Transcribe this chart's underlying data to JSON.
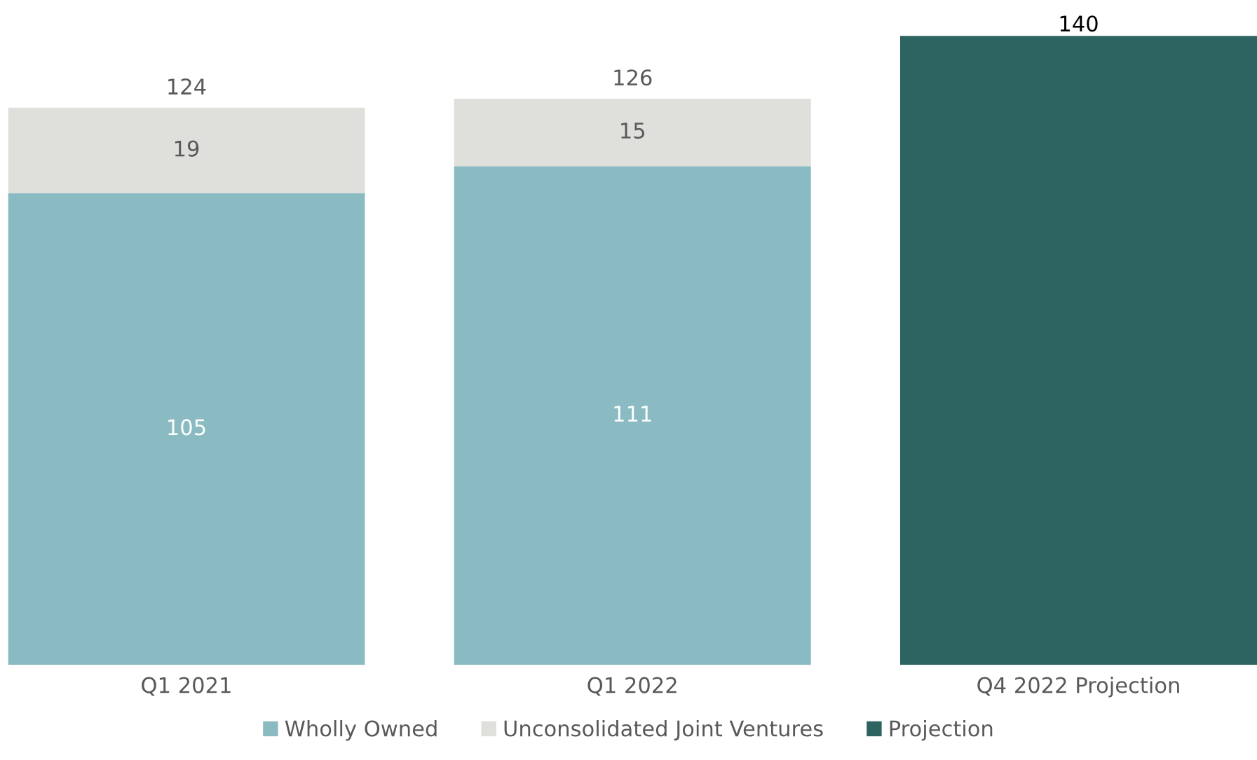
{
  "chart_data": {
    "type": "bar",
    "stacked": true,
    "categories": [
      "Q1 2021",
      "Q1 2022",
      "Q4 2022 Projection"
    ],
    "series": [
      {
        "name": "Wholly Owned",
        "color": "#8abbc2",
        "values": [
          105,
          111,
          null
        ]
      },
      {
        "name": "Unconsolidated Joint Ventures",
        "color": "#dfdfdb",
        "values": [
          19,
          15,
          null
        ]
      },
      {
        "name": "Projection",
        "color": "#2d6360",
        "values": [
          null,
          null,
          140
        ]
      }
    ],
    "data_labels": true,
    "totals": [
      "124",
      "126",
      null
    ],
    "tick_labels": "x",
    "grid": false,
    "legend": "bottom"
  }
}
